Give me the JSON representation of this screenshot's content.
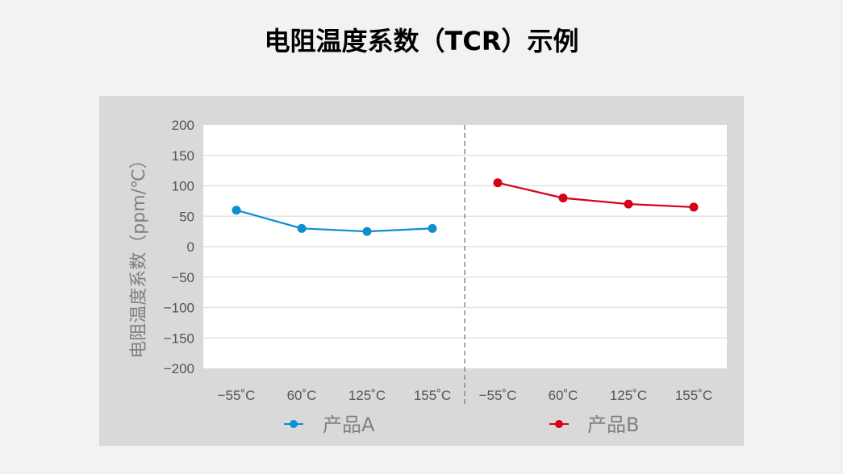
{
  "title": "电阻温度系数（TCR）示例",
  "chart_data": {
    "type": "line",
    "title": "电阻温度系数（TCR）示例",
    "xlabel": "",
    "ylabel": "电阻温度系数（ppm/℃）",
    "ylim": [
      -200,
      200
    ],
    "yticks": [
      200,
      150,
      100,
      50,
      0,
      -50,
      -100,
      -150,
      -200
    ],
    "grid": true,
    "legend_position": "bottom",
    "categories": [
      "−55˚C",
      "60˚C",
      "125˚C",
      "155˚C"
    ],
    "series": [
      {
        "name": "产品A",
        "color": "#0f8fd0",
        "values": [
          60,
          30,
          25,
          30
        ]
      },
      {
        "name": "产品B",
        "color": "#d7001a",
        "values": [
          105,
          80,
          70,
          65
        ]
      }
    ]
  }
}
